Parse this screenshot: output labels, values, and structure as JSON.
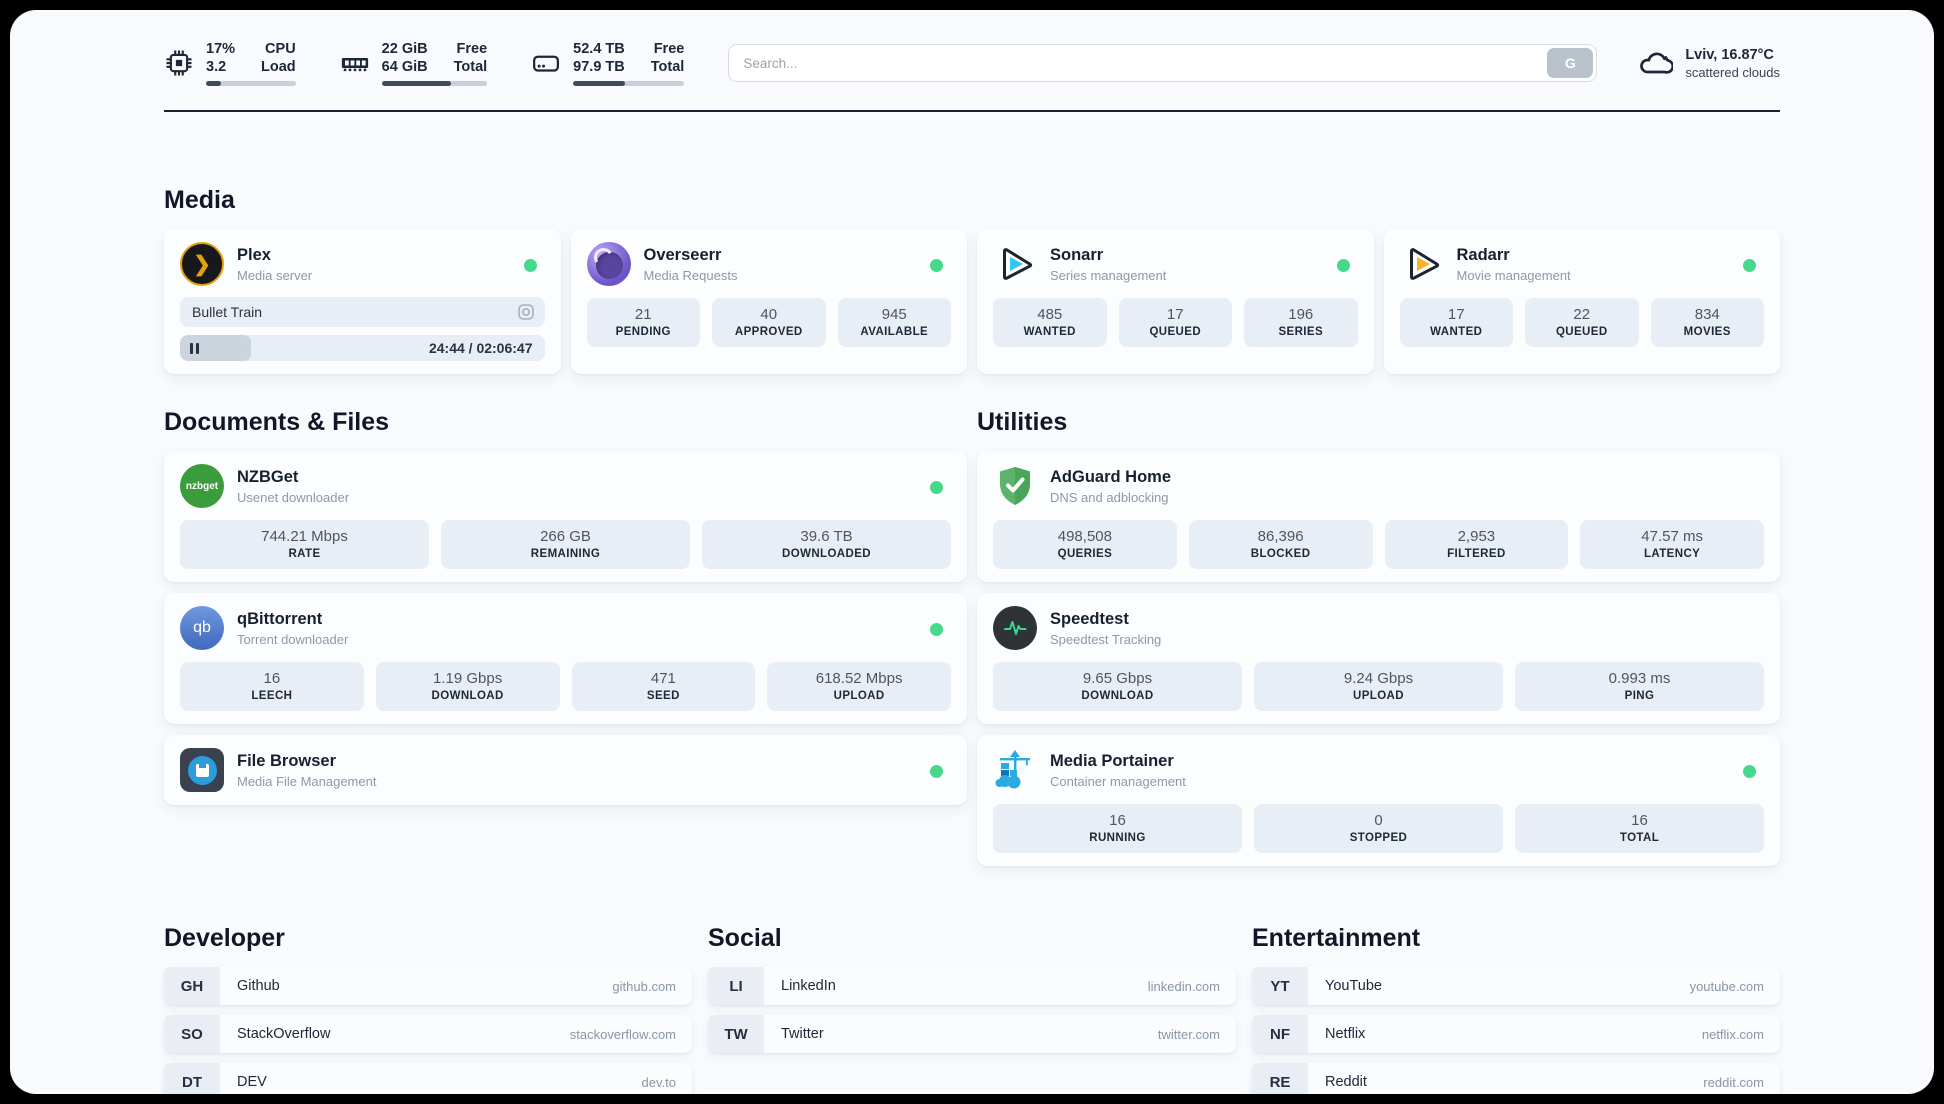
{
  "topbar": {
    "cpu": {
      "value_top": "17%",
      "value_bottom": "3.2",
      "label_top": "CPU",
      "label_bottom": "Load",
      "progress": 17
    },
    "memory": {
      "value_top": "22 GiB",
      "value_bottom": "64 GiB",
      "label_top": "Free",
      "label_bottom": "Total",
      "progress": 66
    },
    "disk": {
      "value_top": "52.4 TB",
      "value_bottom": "97.9 TB",
      "label_top": "Free",
      "label_bottom": "Total",
      "progress": 47
    },
    "search": {
      "placeholder": "Search...",
      "button_label": "G"
    },
    "weather": {
      "location_temp": "Lviv, 16.87°C",
      "condition": "scattered clouds",
      "icon": "cloud-icon"
    }
  },
  "media": {
    "section_title": "Media",
    "plex": {
      "title": "Plex",
      "subtitle": "Media server",
      "icon": "plex-icon",
      "online": true,
      "now_playing": "Bullet Train",
      "time": "24:44 / 02:06:47",
      "progress": 19.5
    },
    "overseerr": {
      "title": "Overseerr",
      "subtitle": "Media Requests",
      "icon": "overseerr-icon",
      "online": true,
      "stats": [
        {
          "value": "21",
          "label": "PENDING"
        },
        {
          "value": "40",
          "label": "APPROVED"
        },
        {
          "value": "945",
          "label": "AVAILABLE"
        }
      ]
    },
    "sonarr": {
      "title": "Sonarr",
      "subtitle": "Series management",
      "icon": "sonarr-icon",
      "online": true,
      "stats": [
        {
          "value": "485",
          "label": "WANTED"
        },
        {
          "value": "17",
          "label": "QUEUED"
        },
        {
          "value": "196",
          "label": "SERIES"
        }
      ]
    },
    "radarr": {
      "title": "Radarr",
      "subtitle": "Movie management",
      "icon": "radarr-icon",
      "online": true,
      "stats": [
        {
          "value": "17",
          "label": "WANTED"
        },
        {
          "value": "22",
          "label": "QUEUED"
        },
        {
          "value": "834",
          "label": "MOVIES"
        }
      ]
    }
  },
  "documents": {
    "section_title": "Documents & Files",
    "nzbget": {
      "title": "NZBGet",
      "subtitle": "Usenet downloader",
      "icon": "nzbget-icon",
      "online": true,
      "icon_text": "nzbget",
      "stats": [
        {
          "value": "744.21 Mbps",
          "label": "RATE"
        },
        {
          "value": "266 GB",
          "label": "REMAINING"
        },
        {
          "value": "39.6 TB",
          "label": "DOWNLOADED"
        }
      ]
    },
    "qbittorrent": {
      "title": "qBittorrent",
      "subtitle": "Torrent downloader",
      "icon": "qbittorrent-icon",
      "online": true,
      "icon_text": "qb",
      "stats": [
        {
          "value": "16",
          "label": "LEECH"
        },
        {
          "value": "1.19 Gbps",
          "label": "DOWNLOAD"
        },
        {
          "value": "471",
          "label": "SEED"
        },
        {
          "value": "618.52 Mbps",
          "label": "UPLOAD"
        }
      ]
    },
    "filebrowser": {
      "title": "File Browser",
      "subtitle": "Media File Management",
      "icon": "filebrowser-icon",
      "online": true
    }
  },
  "utilities": {
    "section_title": "Utilities",
    "adguard": {
      "title": "AdGuard Home",
      "subtitle": "DNS and adblocking",
      "icon": "adguard-shield-icon",
      "online": false,
      "stats": [
        {
          "value": "498,508",
          "label": "QUERIES"
        },
        {
          "value": "86,396",
          "label": "BLOCKED"
        },
        {
          "value": "2,953",
          "label": "FILTERED"
        },
        {
          "value": "47.57 ms",
          "label": "LATENCY"
        }
      ]
    },
    "speedtest": {
      "title": "Speedtest",
      "subtitle": "Speedtest Tracking",
      "icon": "speedtest-pulse-icon",
      "online": false,
      "stats": [
        {
          "value": "9.65 Gbps",
          "label": "DOWNLOAD"
        },
        {
          "value": "9.24 Gbps",
          "label": "UPLOAD"
        },
        {
          "value": "0.993 ms",
          "label": "PING"
        }
      ]
    },
    "portainer": {
      "title": "Media Portainer",
      "subtitle": "Container management",
      "icon": "portainer-crane-icon",
      "online": true,
      "stats": [
        {
          "value": "16",
          "label": "RUNNING"
        },
        {
          "value": "0",
          "label": "STOPPED"
        },
        {
          "value": "16",
          "label": "TOTAL"
        }
      ]
    }
  },
  "developer": {
    "section_title": "Developer",
    "items": [
      {
        "abbr": "GH",
        "name": "Github",
        "domain": "github.com"
      },
      {
        "abbr": "SO",
        "name": "StackOverflow",
        "domain": "stackoverflow.com"
      },
      {
        "abbr": "DT",
        "name": "DEV",
        "domain": "dev.to"
      }
    ]
  },
  "social": {
    "section_title": "Social",
    "items": [
      {
        "abbr": "LI",
        "name": "LinkedIn",
        "domain": "linkedin.com"
      },
      {
        "abbr": "TW",
        "name": "Twitter",
        "domain": "twitter.com"
      }
    ]
  },
  "entertainment": {
    "section_title": "Entertainment",
    "items": [
      {
        "abbr": "YT",
        "name": "YouTube",
        "domain": "youtube.com"
      },
      {
        "abbr": "NF",
        "name": "Netflix",
        "domain": "netflix.com"
      },
      {
        "abbr": "RE",
        "name": "Reddit",
        "domain": "reddit.com"
      }
    ]
  },
  "colors": {
    "status_green": "#47d98b",
    "page_bg": "#f8fafd",
    "tile_bg": "#e8eef5",
    "text_dark": "#1d2738",
    "text_muted": "#8e98a8",
    "plex_gold": "#e5a00d",
    "sonarr_blue": "#35c5f4",
    "radarr_gold": "#f7b32b",
    "adguard_green": "#5cb46c",
    "portainer_blue": "#29abe2",
    "qbittorrent_blue": "#4f7cc7",
    "nzbget_green": "#3a9c3a",
    "speedtest_pulse": "#3ad98f",
    "progress_fill": "#3e4a5e"
  }
}
